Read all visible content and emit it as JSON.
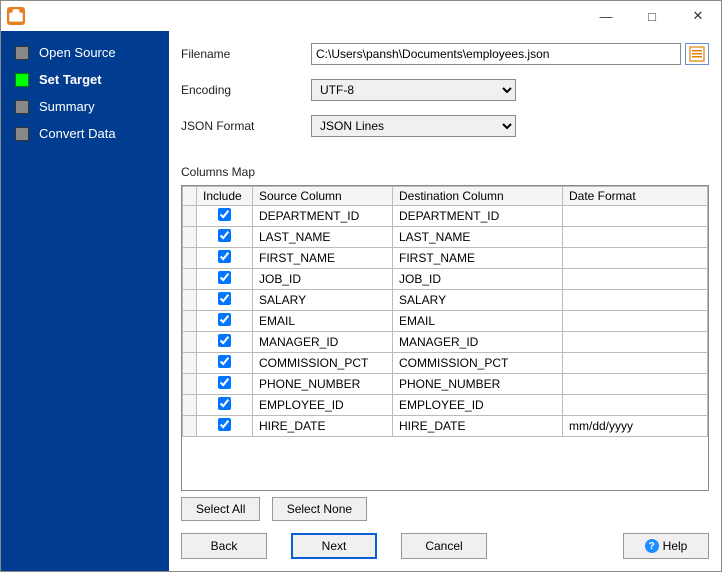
{
  "window": {
    "minimize": "—",
    "maximize": "□",
    "close": "✕"
  },
  "sidebar": {
    "steps": [
      {
        "label": "Open Source",
        "active": false
      },
      {
        "label": "Set Target",
        "active": true
      },
      {
        "label": "Summary",
        "active": false
      },
      {
        "label": "Convert Data",
        "active": false
      }
    ]
  },
  "form": {
    "filename_label": "Filename",
    "filename_value": "C:\\Users\\pansh\\Documents\\employees.json",
    "encoding_label": "Encoding",
    "encoding_value": "UTF-8",
    "json_format_label": "JSON Format",
    "json_format_value": "JSON Lines",
    "columns_map_label": "Columns Map"
  },
  "table": {
    "headers": {
      "include": "Include",
      "source": "Source Column",
      "dest": "Destination Column",
      "format": "Date Format"
    },
    "rows": [
      {
        "include": true,
        "source": "DEPARTMENT_ID",
        "dest": "DEPARTMENT_ID",
        "format": ""
      },
      {
        "include": true,
        "source": "LAST_NAME",
        "dest": "LAST_NAME",
        "format": ""
      },
      {
        "include": true,
        "source": "FIRST_NAME",
        "dest": "FIRST_NAME",
        "format": ""
      },
      {
        "include": true,
        "source": "JOB_ID",
        "dest": "JOB_ID",
        "format": ""
      },
      {
        "include": true,
        "source": "SALARY",
        "dest": "SALARY",
        "format": ""
      },
      {
        "include": true,
        "source": "EMAIL",
        "dest": "EMAIL",
        "format": ""
      },
      {
        "include": true,
        "source": "MANAGER_ID",
        "dest": "MANAGER_ID",
        "format": ""
      },
      {
        "include": true,
        "source": "COMMISSION_PCT",
        "dest": "COMMISSION_PCT",
        "format": ""
      },
      {
        "include": true,
        "source": "PHONE_NUMBER",
        "dest": "PHONE_NUMBER",
        "format": ""
      },
      {
        "include": true,
        "source": "EMPLOYEE_ID",
        "dest": "EMPLOYEE_ID",
        "format": ""
      },
      {
        "include": true,
        "source": "HIRE_DATE",
        "dest": "HIRE_DATE",
        "format": "mm/dd/yyyy"
      }
    ]
  },
  "buttons": {
    "select_all": "Select All",
    "select_none": "Select None",
    "back": "Back",
    "next": "Next",
    "cancel": "Cancel",
    "help": "Help"
  }
}
